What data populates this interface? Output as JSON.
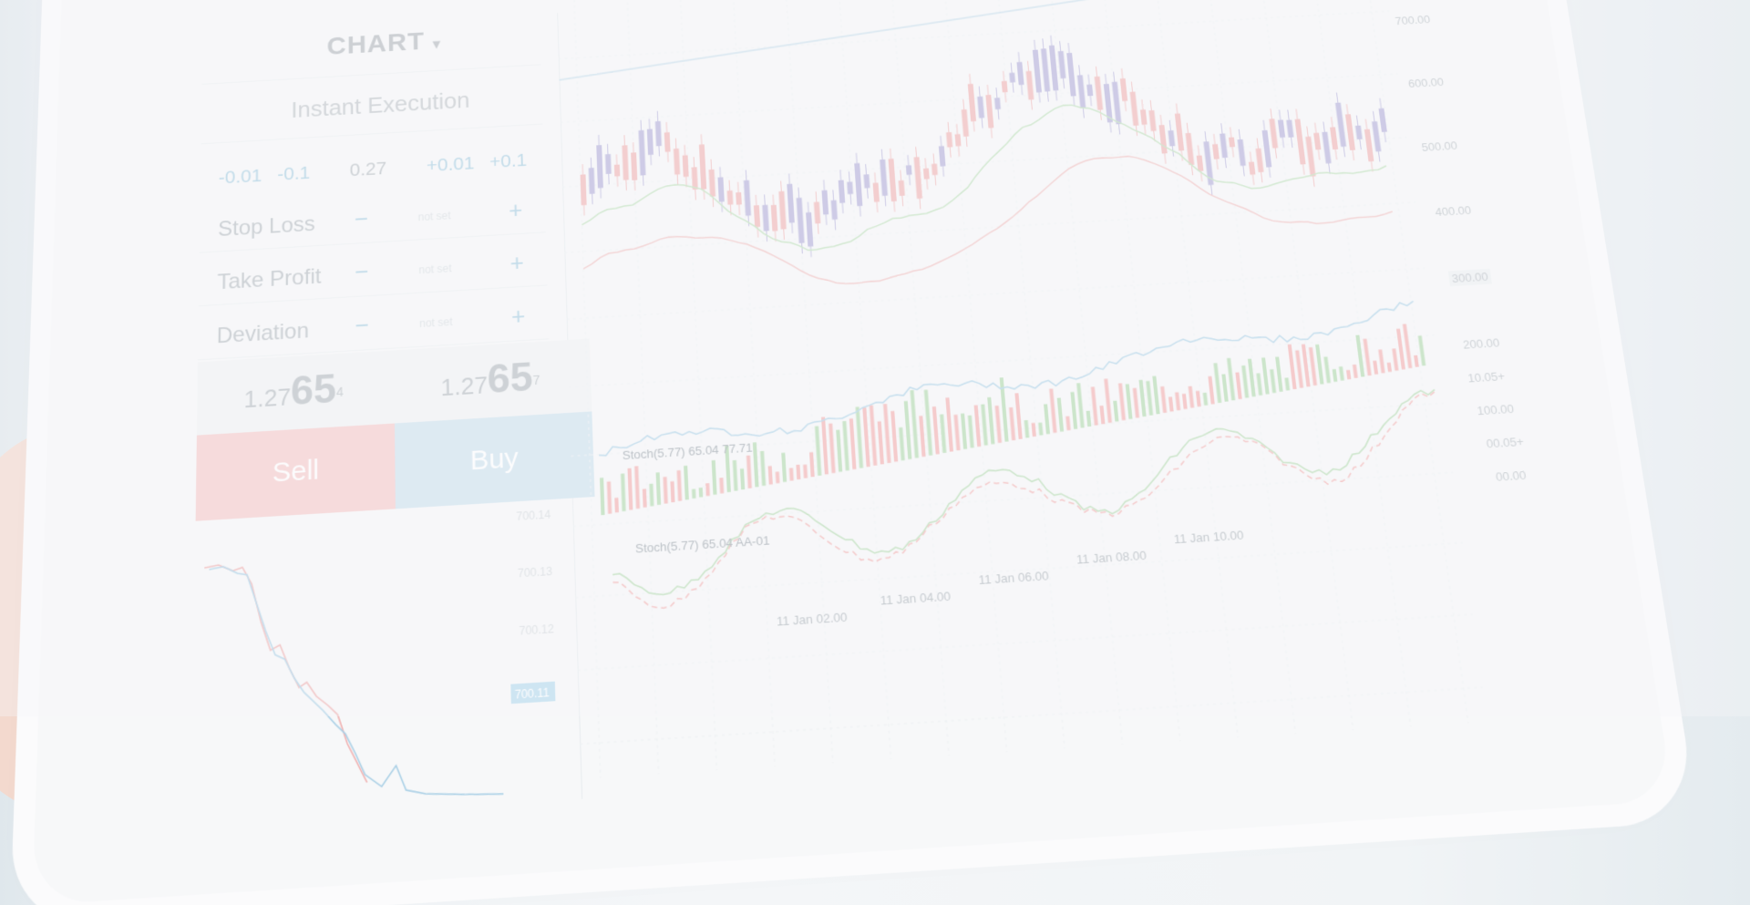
{
  "panel": {
    "header": "CHART",
    "mode": "Instant Execution",
    "steps": [
      "-0.01",
      "-0.1",
      "0.27",
      "+0.01",
      "+0.1"
    ],
    "rows": [
      {
        "label": "Stop Loss",
        "value": "not set"
      },
      {
        "label": "Take Profit",
        "value": "not set"
      },
      {
        "label": "Deviation",
        "value": "not set"
      }
    ],
    "minus": "−",
    "plus": "+",
    "sell_price": {
      "prefix": "1.27",
      "big": "65",
      "sup": "4"
    },
    "buy_price": {
      "prefix": "1.27",
      "big": "65",
      "sup": "7"
    },
    "sell_label": "Sell",
    "buy_label": "Buy",
    "mini_axis": [
      "700.14",
      "700.13",
      "700.12",
      "700.11"
    ]
  },
  "chart": {
    "y_axis": [
      "700.00",
      "600.00",
      "500.00",
      "400.00",
      "300.00",
      "200.00"
    ],
    "volume_axis": [
      "10.05+",
      "100.00",
      "00.05+",
      "00.00"
    ],
    "stoch1": "Stoch(5.77) 65.04 77.71",
    "stoch2": "Stoch(5.77) 65.04 AA-01",
    "time_axis": [
      "11 Jan 02.00",
      "11 Jan 04.00",
      "11 Jan 06.00",
      "11 Jan 08.00",
      "11 Jan 10.00"
    ],
    "colors": {
      "up": "#b8b4dc",
      "down": "#f2b8b8",
      "green": "#b6dcb2",
      "red": "#f4b4b4",
      "line": "#a9cfe2"
    }
  }
}
